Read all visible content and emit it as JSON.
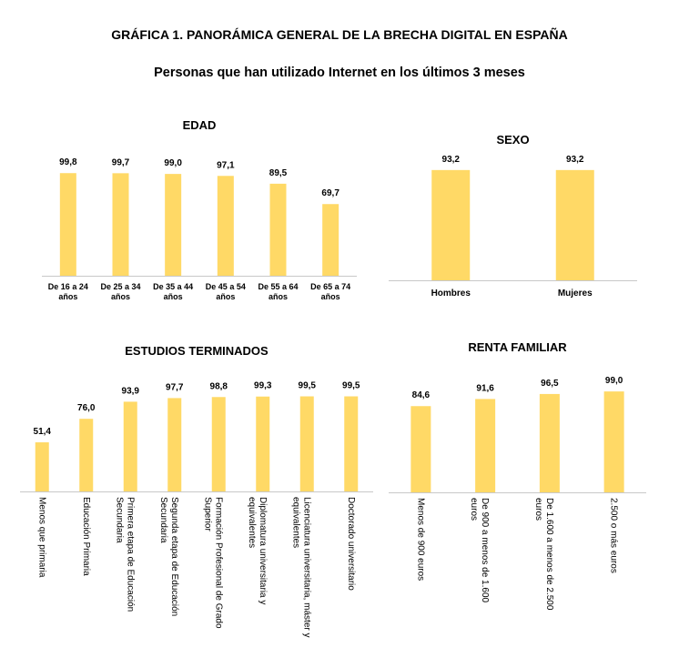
{
  "title": "GRÁFICA 1. PANORÁMICA GENERAL DE LA BRECHA DIGITAL EN ESPAÑA",
  "subtitle": "Personas que han utilizado Internet en los últimos 3 meses",
  "bar_color": "#ffd966",
  "chart_data": [
    {
      "type": "bar",
      "title": "EDAD",
      "categories": [
        "De 16 a 24 años",
        "De 25 a 34 años",
        "De 35 a 44 años",
        "De 45 a 54 años",
        "De 55 a 64 años",
        "De 65 a 74 años"
      ],
      "values": [
        99.8,
        99.7,
        99.0,
        97.1,
        89.5,
        69.7
      ],
      "labels": [
        "99,8",
        "99,7",
        "99,0",
        "97,1",
        "89,5",
        "69,7"
      ],
      "ylim": [
        0,
        100
      ],
      "grid": false
    },
    {
      "type": "bar",
      "title": "SEXO",
      "categories": [
        "Hombres",
        "Mujeres"
      ],
      "values": [
        93.2,
        93.2
      ],
      "labels": [
        "93,2",
        "93,2"
      ],
      "ylim": [
        0,
        100
      ],
      "grid": false
    },
    {
      "type": "bar",
      "title": "ESTUDIOS TERMINADOS",
      "categories": [
        "Menos que primaria",
        "Educación Primaria",
        "Primera etapa de Educación Secundaria",
        "Segunda etapa de Educación Secundaria",
        "Formación Profesional de Grado Superior",
        "Diplomatura universitaria y equivalentes",
        "Licenciatura universitaria, máster y equivalentes",
        "Doctorado universitario"
      ],
      "values": [
        51.4,
        76.0,
        93.9,
        97.7,
        98.8,
        99.3,
        99.5,
        99.5
      ],
      "labels": [
        "51,4",
        "76,0",
        "93,9",
        "97,7",
        "98,8",
        "99,3",
        "99,5",
        "99,5"
      ],
      "ylim": [
        0,
        100
      ],
      "grid": false
    },
    {
      "type": "bar",
      "title": "RENTA FAMILIAR",
      "categories": [
        "Menos de 900 euros",
        "De 900 a menos de 1.600 euros",
        "De 1.600 a menos de 2.500 euros",
        "2.500 o más euros"
      ],
      "values": [
        84.6,
        91.6,
        96.5,
        99.0
      ],
      "labels": [
        "84,6",
        "91,6",
        "96,5",
        "99,0"
      ],
      "ylim": [
        0,
        100
      ],
      "grid": false
    }
  ]
}
